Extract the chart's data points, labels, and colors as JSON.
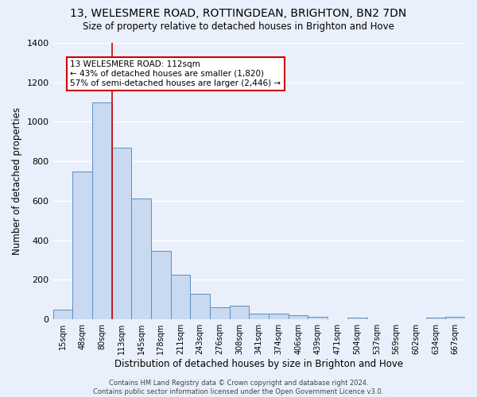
{
  "title1": "13, WELESMERE ROAD, ROTTINGDEAN, BRIGHTON, BN2 7DN",
  "title2": "Size of property relative to detached houses in Brighton and Hove",
  "xlabel": "Distribution of detached houses by size in Brighton and Hove",
  "ylabel": "Number of detached properties",
  "categories": [
    "15sqm",
    "48sqm",
    "80sqm",
    "113sqm",
    "145sqm",
    "178sqm",
    "211sqm",
    "243sqm",
    "276sqm",
    "308sqm",
    "341sqm",
    "374sqm",
    "406sqm",
    "439sqm",
    "471sqm",
    "504sqm",
    "537sqm",
    "569sqm",
    "602sqm",
    "634sqm",
    "667sqm"
  ],
  "values": [
    48,
    750,
    1100,
    870,
    610,
    345,
    225,
    130,
    60,
    68,
    30,
    28,
    20,
    13,
    0,
    10,
    0,
    0,
    0,
    10,
    12
  ],
  "bar_color": "#c9d9ef",
  "bar_edge_color": "#5a8fc4",
  "vline_x": 2.5,
  "vline_color": "#cc0000",
  "annotation_text": "13 WELESMERE ROAD: 112sqm\n← 43% of detached houses are smaller (1,820)\n57% of semi-detached houses are larger (2,446) →",
  "box_color": "#cc0000",
  "footer": "Contains HM Land Registry data © Crown copyright and database right 2024.\nContains public sector information licensed under the Open Government Licence v3.0.",
  "ylim": [
    0,
    1400
  ],
  "background_color": "#eaf0fb",
  "grid_color": "#ffffff",
  "title1_fontsize": 10,
  "title2_fontsize": 8.5
}
